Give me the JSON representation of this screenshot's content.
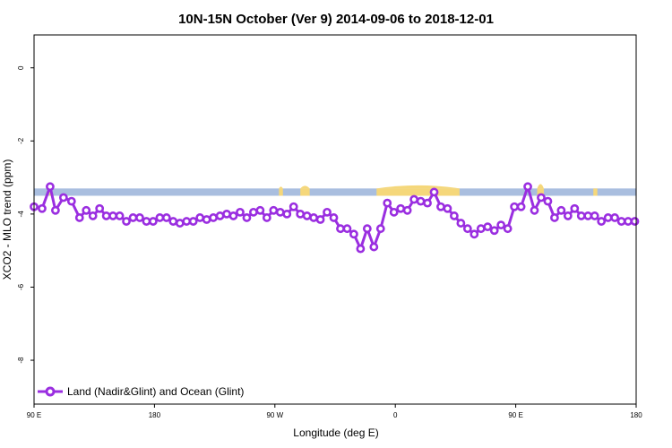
{
  "chart_data": {
    "type": "line",
    "title": "10N-15N October (Ver 9)   2014-09-06 to 2018-12-01",
    "xlabel": "Longitude (deg E)",
    "ylabel": "XCO2 - MLO trend (ppm)",
    "x_ticks": [
      {
        "value": 90,
        "label": "90 E"
      },
      {
        "value": 180,
        "label": "180"
      },
      {
        "value": 270,
        "label": "90 W"
      },
      {
        "value": 360,
        "label": "0"
      },
      {
        "value": 450,
        "label": "90 E"
      },
      {
        "value": 540,
        "label": "180"
      }
    ],
    "y_ticks": [
      0,
      -2,
      -4,
      -6,
      -8
    ],
    "xlim": [
      90,
      540
    ],
    "ylim": [
      -9.2,
      0.9
    ],
    "grid": false,
    "legend_position": "bottom-left",
    "land_ocean_band": {
      "y_top": -3.3,
      "y_bottom": -3.5,
      "ocean_color": "#a9bedf",
      "land_color": "#f5d77a",
      "land_segments": [
        [
          101.5,
          103.5
        ],
        [
          273,
          276
        ],
        [
          289,
          296
        ],
        [
          346,
          408
        ],
        [
          466,
          471
        ],
        [
          508,
          511
        ]
      ]
    },
    "series": [
      {
        "name": "Land (Nadir&Glint) and Ocean (Glint)",
        "color": "#9a2ee0",
        "x": [
          90,
          96,
          102,
          106,
          112,
          118,
          124,
          129,
          134,
          139,
          144,
          149,
          154,
          159,
          164,
          169,
          174,
          179,
          184,
          189,
          194,
          199,
          204,
          209,
          214,
          219,
          224,
          229,
          234,
          239,
          244,
          249,
          254,
          259,
          264,
          269,
          274,
          279,
          284,
          289,
          294,
          299,
          304,
          309,
          314,
          319,
          324,
          329,
          334,
          339,
          344,
          349,
          354,
          359,
          364,
          369,
          374,
          379,
          384,
          389,
          394,
          399,
          404,
          409,
          414,
          419,
          424,
          429,
          434,
          439,
          444,
          449,
          454,
          459,
          464,
          469,
          474,
          479,
          484,
          489,
          494,
          499,
          504,
          509,
          514,
          519,
          524,
          529,
          534,
          539
        ],
        "y": [
          -3.8,
          -3.85,
          -3.25,
          -3.9,
          -3.55,
          -3.65,
          -4.1,
          -3.9,
          -4.05,
          -3.85,
          -4.05,
          -4.05,
          -4.05,
          -4.2,
          -4.1,
          -4.1,
          -4.2,
          -4.2,
          -4.1,
          -4.1,
          -4.2,
          -4.25,
          -4.2,
          -4.2,
          -4.1,
          -4.15,
          -4.1,
          -4.05,
          -4.0,
          -4.05,
          -3.95,
          -4.1,
          -3.95,
          -3.9,
          -4.1,
          -3.9,
          -3.95,
          -4.0,
          -3.8,
          -4.0,
          -4.05,
          -4.1,
          -4.15,
          -3.95,
          -4.1,
          -4.4,
          -4.4,
          -4.55,
          -4.95,
          -4.4,
          -4.9,
          -4.4,
          -3.7,
          -3.95,
          -3.85,
          -3.9,
          -3.6,
          -3.65,
          -3.7,
          -3.4,
          -3.8,
          -3.85,
          -4.05,
          -4.25,
          -4.4,
          -4.55,
          -4.4,
          -4.35,
          -4.45,
          -4.3,
          -4.4,
          -3.8,
          -3.8,
          -3.25,
          -3.9,
          -3.55,
          -3.65,
          -4.1,
          -3.9,
          -4.05,
          -3.85,
          -4.05,
          -4.05,
          -4.05,
          -4.2,
          -4.1,
          -4.1,
          -4.2,
          -4.2,
          -4.2
        ]
      }
    ]
  }
}
